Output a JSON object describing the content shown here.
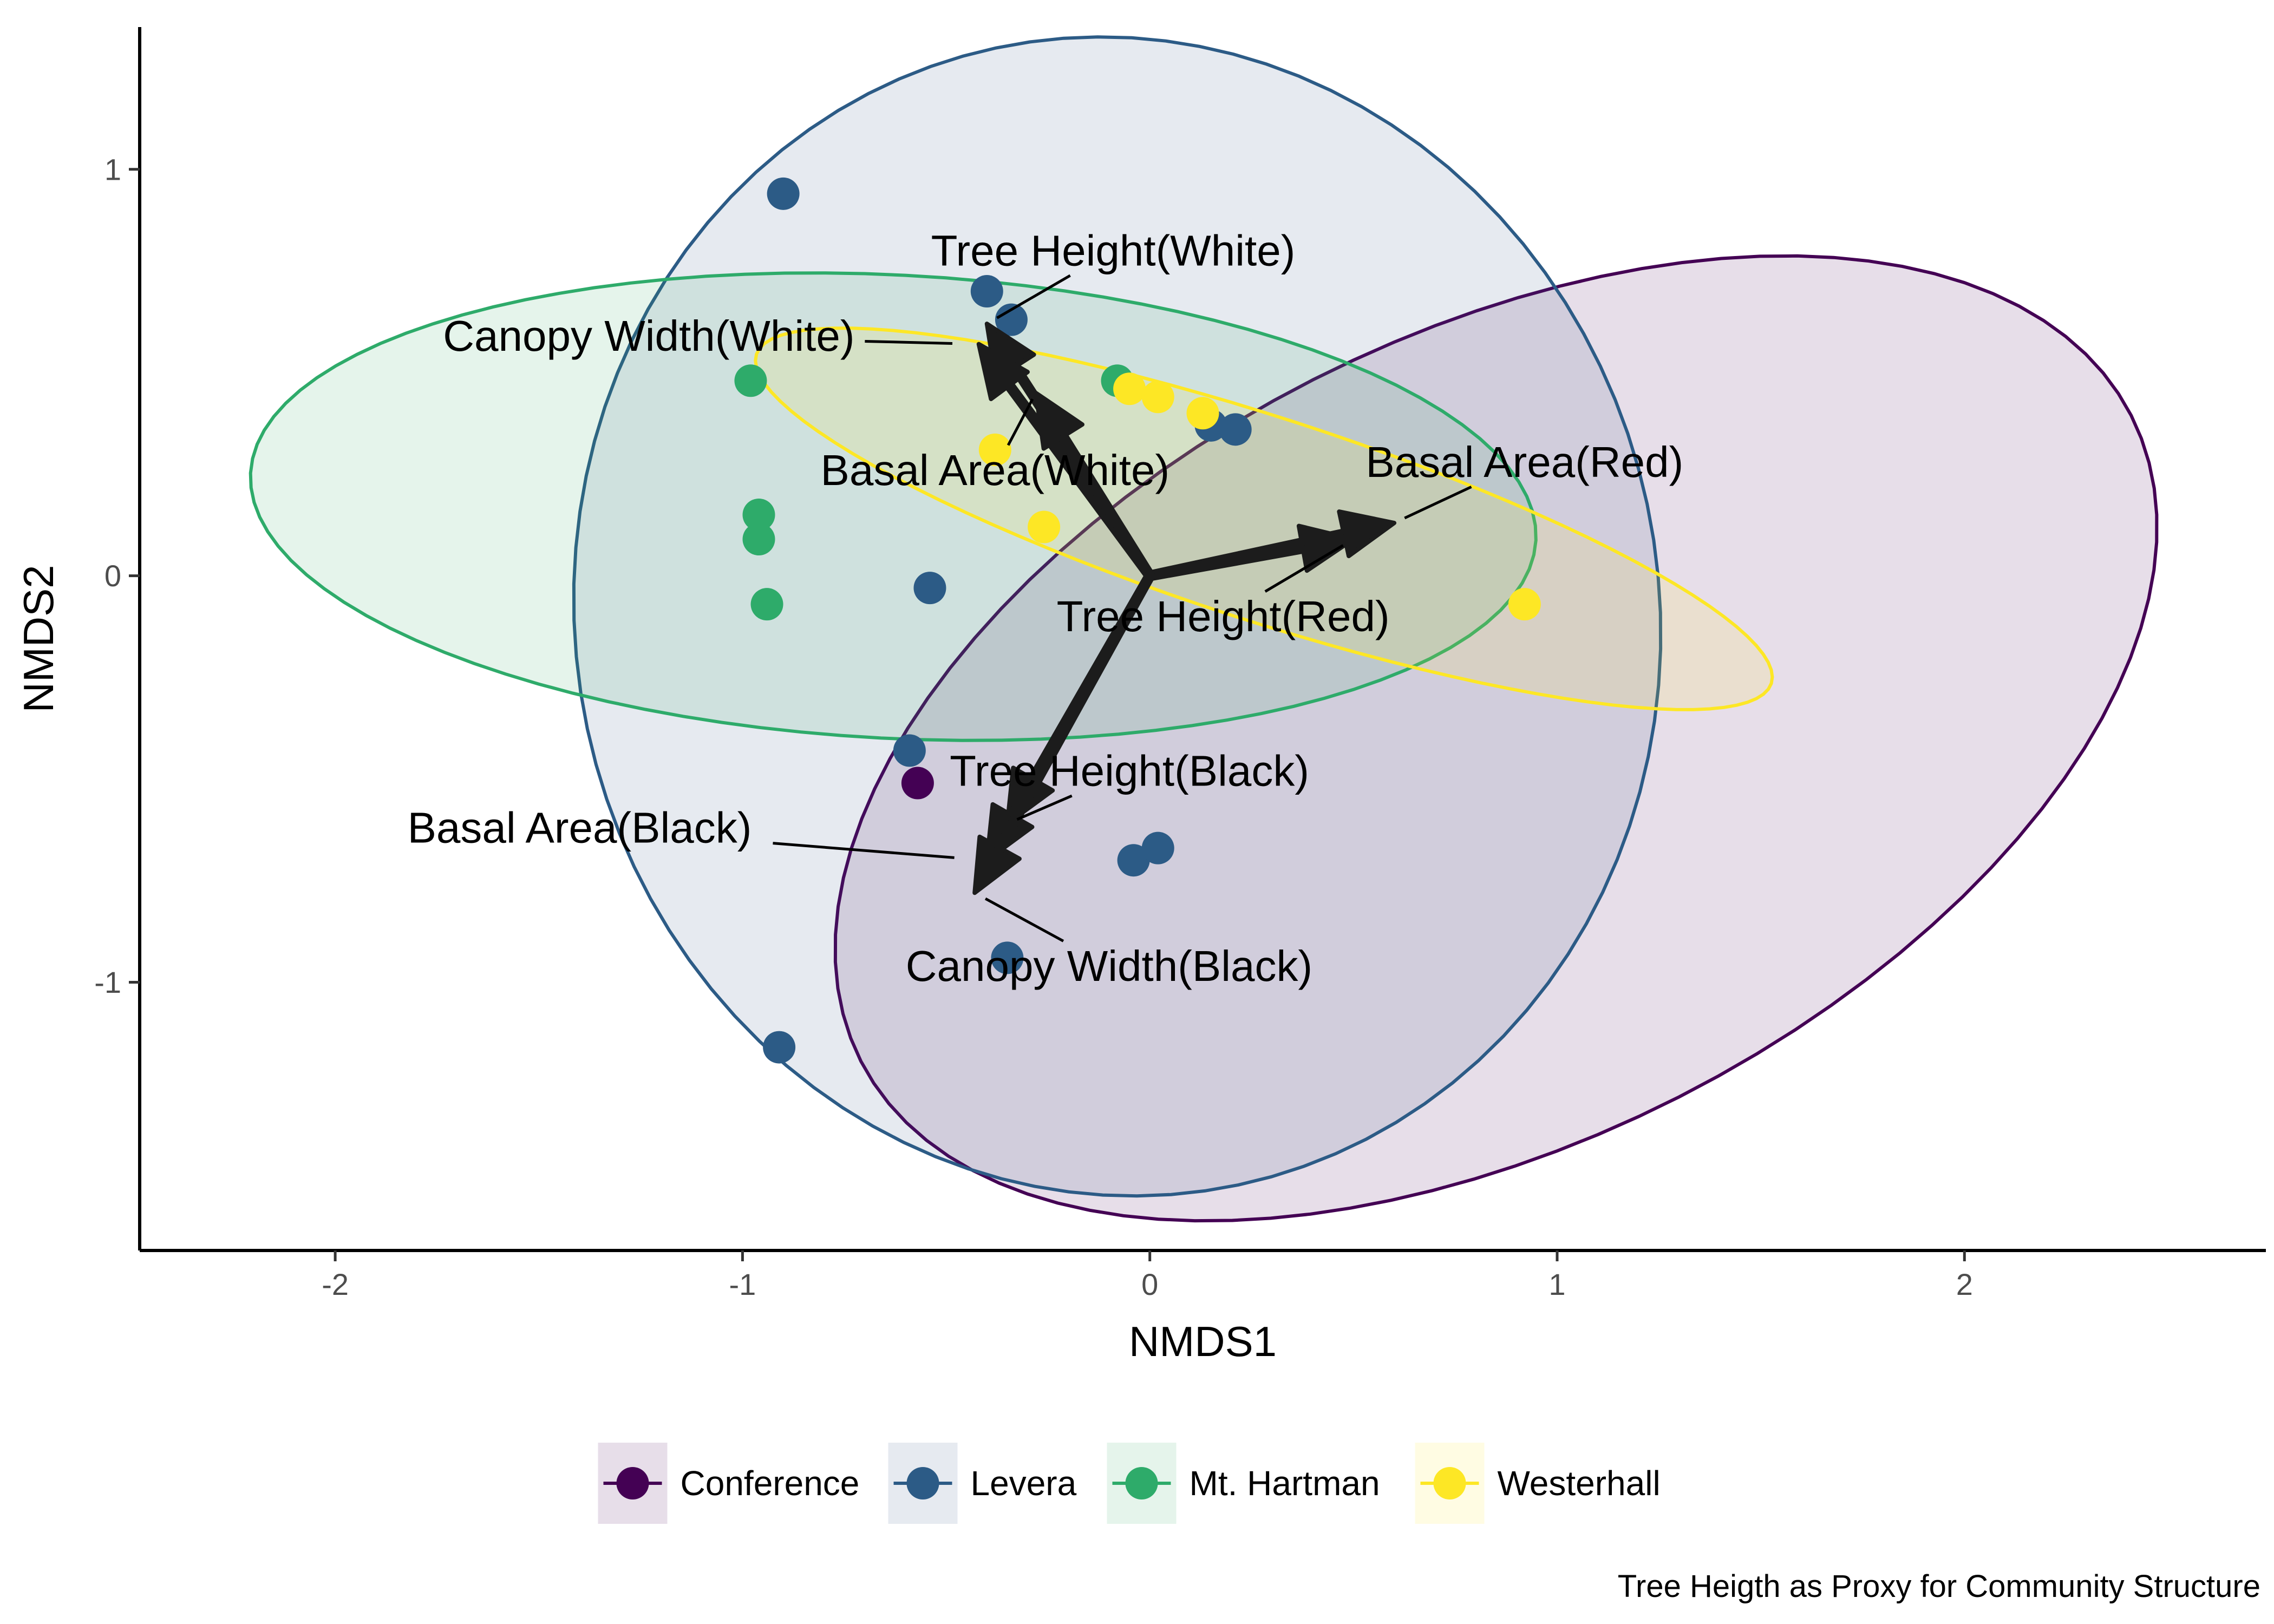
{
  "chart_data": {
    "type": "scatter",
    "title": "",
    "caption": "Tree Heigth as Proxy for Community Structure",
    "xlabel": "NMDS1",
    "ylabel": "NMDS2",
    "xlim": [
      -2.48,
      2.74
    ],
    "ylim": [
      -1.66,
      1.35
    ],
    "xticks": [
      {
        "value": -2,
        "label": "-2"
      },
      {
        "value": -1,
        "label": "-1"
      },
      {
        "value": 0,
        "label": "0"
      },
      {
        "value": 1,
        "label": "1"
      },
      {
        "value": 2,
        "label": "2"
      }
    ],
    "yticks": [
      {
        "value": -1,
        "label": "-1"
      },
      {
        "value": 0,
        "label": "0"
      },
      {
        "value": 1,
        "label": "1"
      }
    ],
    "grid": false,
    "legend_position": "bottom",
    "series": [
      {
        "name": "Conference",
        "color": "#440154",
        "fill": "#440154",
        "points": [
          [
            -0.57,
            -0.51
          ]
        ],
        "ellipse": {
          "cx": 0.85,
          "cy": -0.4,
          "rx": 1.75,
          "ry": 0.99,
          "angle_deg": 27
        }
      },
      {
        "name": "Levera",
        "color": "#2c5b86",
        "fill": "#3b5f8a",
        "points": [
          [
            -0.9,
            0.94
          ],
          [
            -0.4,
            0.7
          ],
          [
            -0.34,
            0.63
          ],
          [
            0.15,
            0.37
          ],
          [
            0.21,
            0.36
          ],
          [
            -0.54,
            -0.03
          ],
          [
            -0.59,
            -0.43
          ],
          [
            -0.04,
            -0.7
          ],
          [
            0.02,
            -0.67
          ],
          [
            -0.35,
            -0.94
          ],
          [
            -0.91,
            -1.16
          ]
        ],
        "ellipse": {
          "cx": -0.08,
          "cy": -0.1,
          "rx": 1.33,
          "ry": 1.43,
          "angle_deg": 12
        }
      },
      {
        "name": "Mt. Hartman",
        "color": "#2eab6a",
        "fill": "#35a865",
        "points": [
          [
            -0.98,
            0.48
          ],
          [
            -0.96,
            0.15
          ],
          [
            -0.96,
            0.09
          ],
          [
            -0.94,
            -0.07
          ],
          [
            -0.08,
            0.48
          ]
        ],
        "ellipse": {
          "cx": -0.63,
          "cy": 0.17,
          "rx": 1.58,
          "ry": 0.57,
          "angle_deg": -3
        }
      },
      {
        "name": "Westerhall",
        "color": "#fde725",
        "fill": "#fde725",
        "points": [
          [
            -0.38,
            0.31
          ],
          [
            -0.26,
            0.12
          ],
          [
            -0.05,
            0.46
          ],
          [
            0.02,
            0.44
          ],
          [
            0.13,
            0.4
          ],
          [
            0.92,
            -0.07
          ]
        ],
        "ellipse": {
          "cx": 0.28,
          "cy": 0.14,
          "rx": 1.31,
          "ry": 0.25,
          "angle_deg": -18
        }
      }
    ],
    "vectors": [
      {
        "label": "Tree Height(White)",
        "x": -0.4,
        "y": 0.62,
        "label_x": -0.09,
        "label_y": 0.8
      },
      {
        "label": "Canopy Width(White)",
        "x": -0.42,
        "y": 0.57,
        "label_x": -1.23,
        "label_y": 0.59
      },
      {
        "label": "Basal Area(White)",
        "x": -0.28,
        "y": 0.45,
        "label_x": -0.38,
        "label_y": 0.26
      },
      {
        "label": "Basal Area(Red)",
        "x": 0.6,
        "y": 0.13,
        "label_x": 0.92,
        "label_y": 0.28
      },
      {
        "label": "Tree Height(Red)",
        "x": 0.5,
        "y": 0.09,
        "label_x": 0.18,
        "label_y": -0.1
      },
      {
        "label": "Tree Height(Black)",
        "x": -0.35,
        "y": -0.61,
        "label_x": -0.05,
        "label_y": -0.48
      },
      {
        "label": "Basal Area(Black)",
        "x": -0.4,
        "y": -0.7,
        "label_x": -1.4,
        "label_y": -0.62
      },
      {
        "label": "Canopy Width(Black)",
        "x": -0.43,
        "y": -0.78,
        "label_x": -0.1,
        "label_y": -0.96
      }
    ]
  }
}
